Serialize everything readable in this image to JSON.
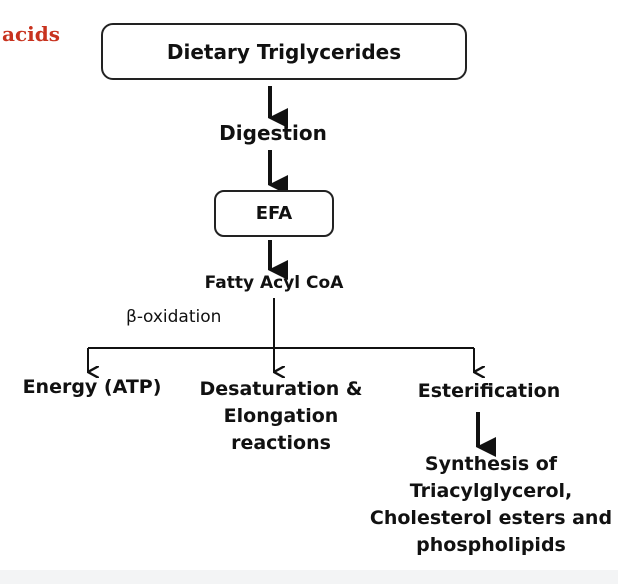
{
  "header": {
    "corner_text": "acids"
  },
  "nodes": {
    "dietary": "Dietary Triglycerides",
    "digestion": "Digestion",
    "efa": "EFA",
    "fatty_acyl": "Fatty Acyl CoA",
    "beta_oxidation": "β-oxidation",
    "energy": "Energy (ATP)",
    "desaturation": "Desaturation & Elongation reactions",
    "esterification": "Esterification",
    "synthesis": "Synthesis of Triacylglycerol, Cholesterol esters and phospholipids"
  }
}
